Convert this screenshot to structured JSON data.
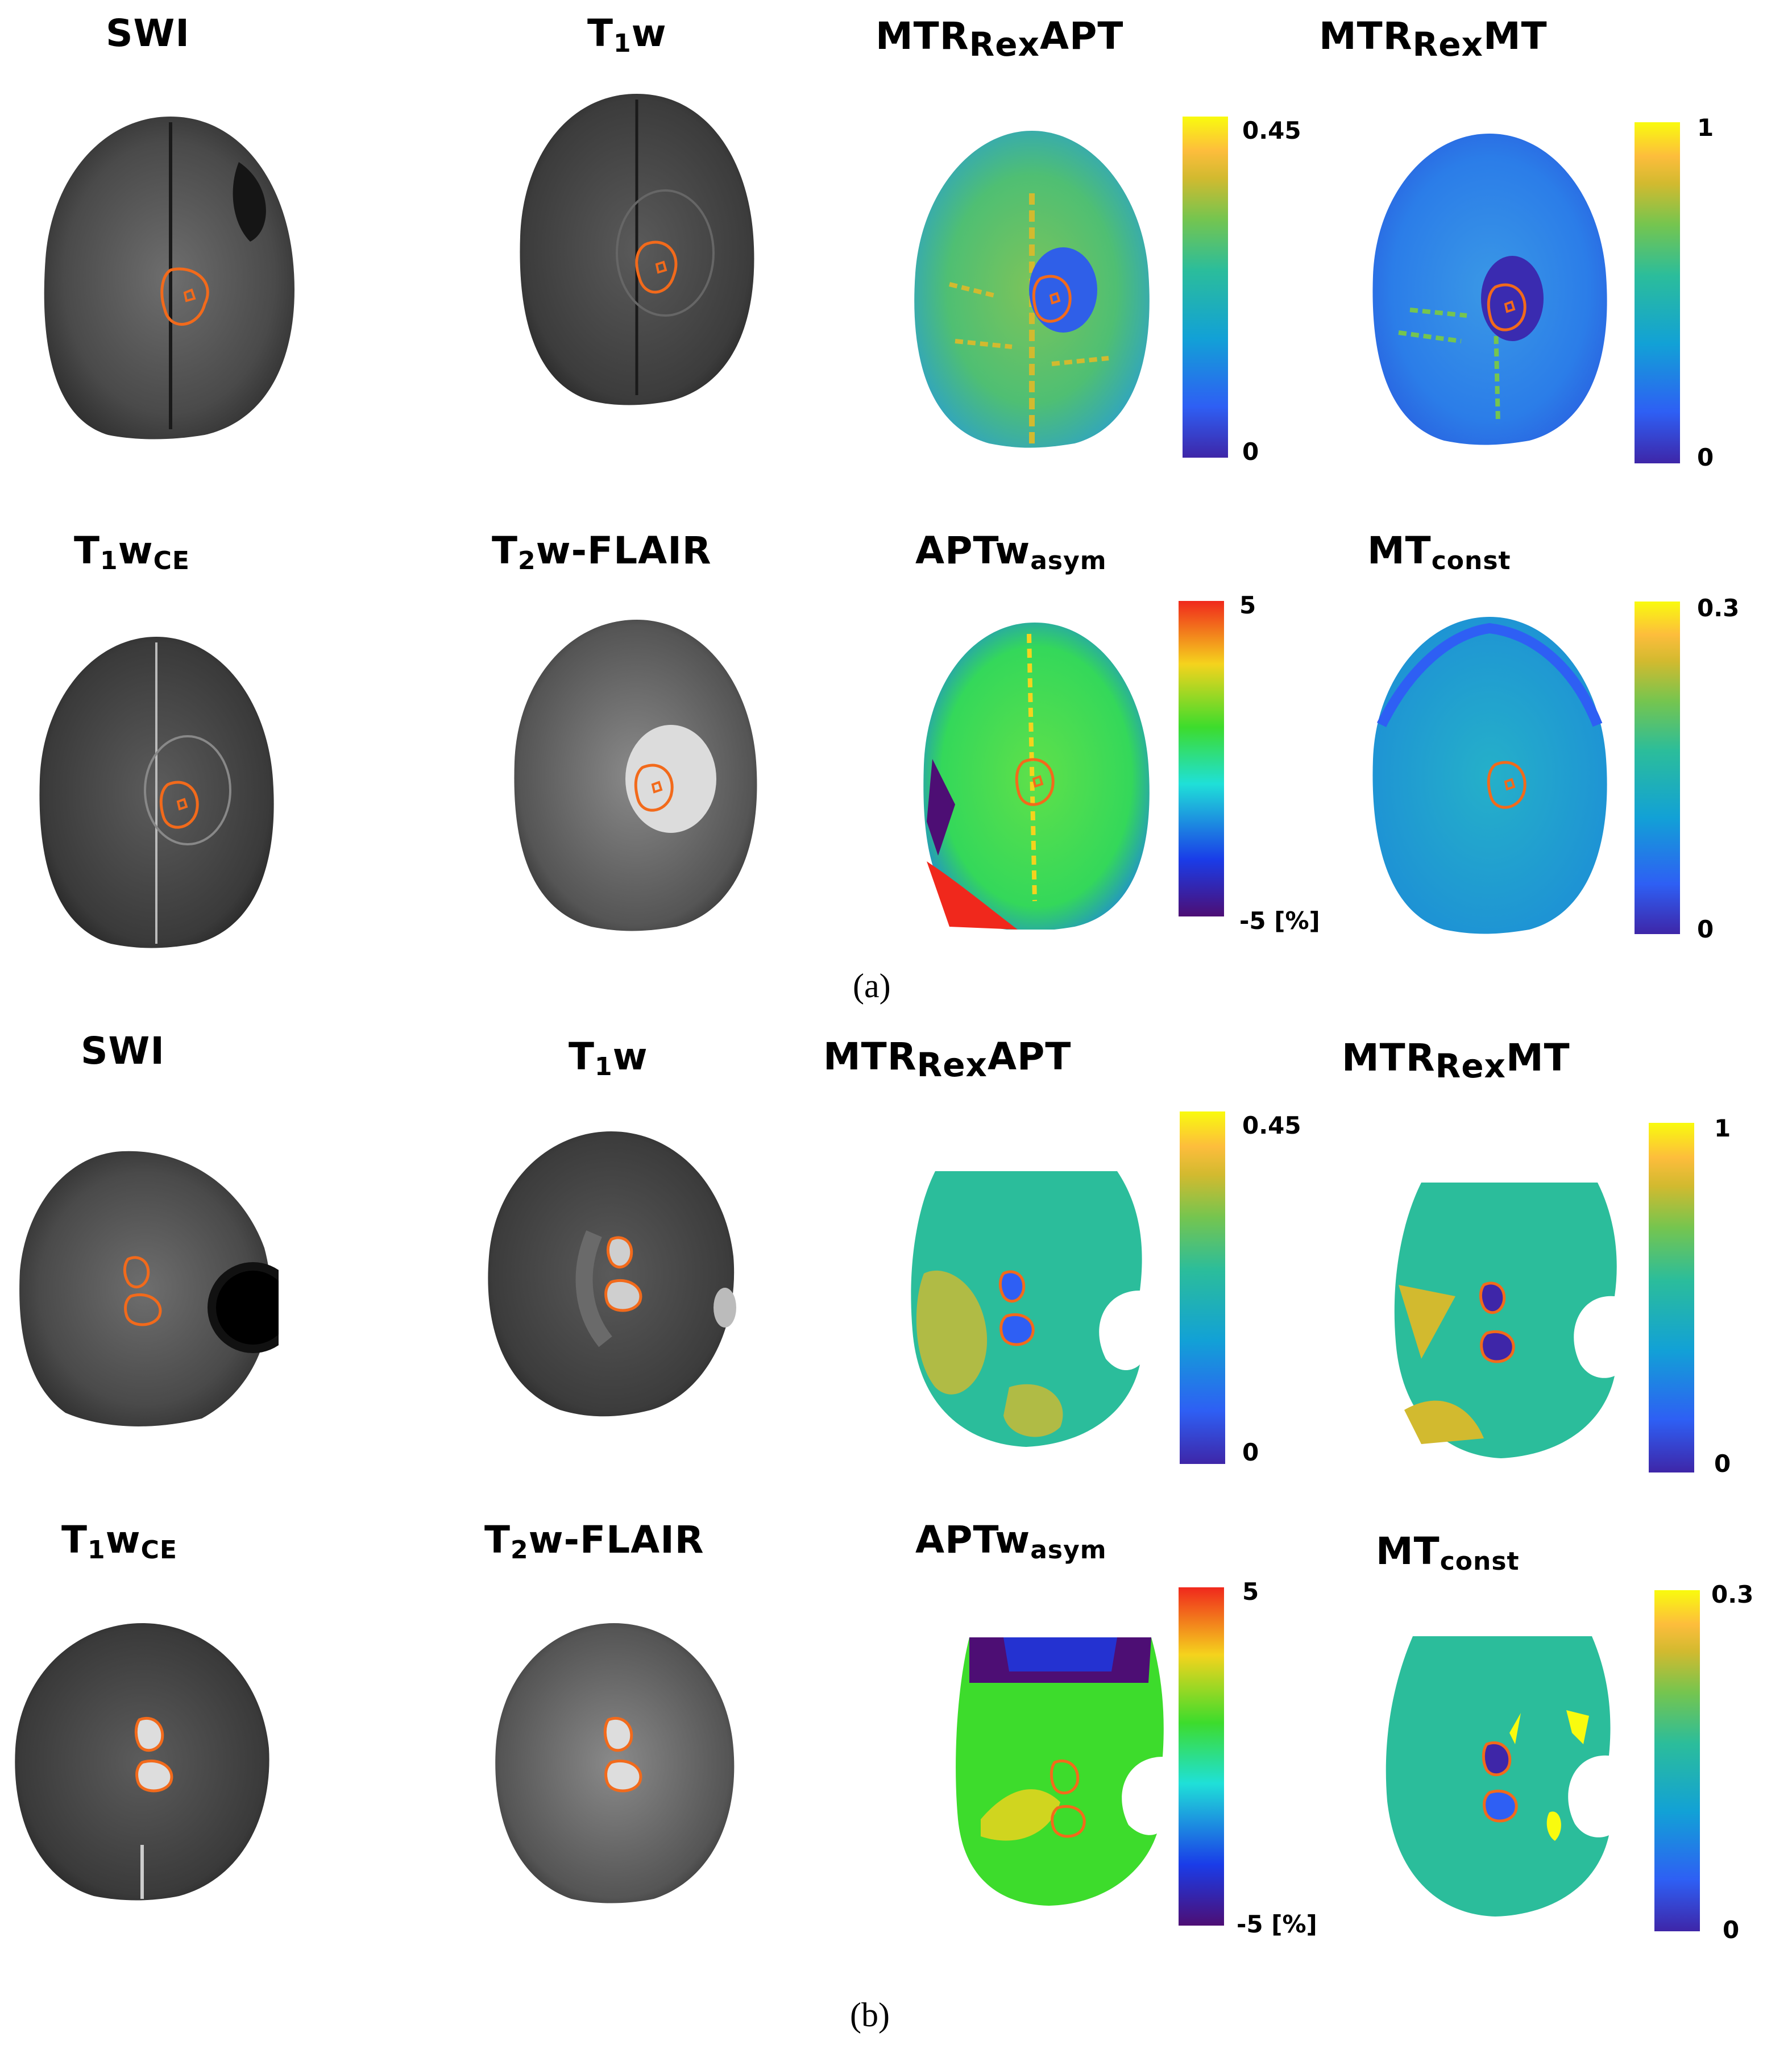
{
  "captions": {
    "a": "(a)",
    "b": "(b)"
  },
  "labels": {
    "swi": "SWI",
    "t1w_main": "T",
    "t1w_sub": "1",
    "t1w_end": "w",
    "t1wce_main": "T",
    "t1wce_sub1": "1",
    "t1wce_w": "w",
    "t1wce_sub2": "CE",
    "t2flair_main": "T",
    "t2flair_sub": "2",
    "t2flair_end": "w-FLAIR",
    "mtrapt_a": "MTR",
    "mtrapt_mid": "Rex",
    "mtrapt_b": "APT",
    "mtrmt_a": "MTR",
    "mtrmt_mid": "Rex",
    "mtrmt_b": "MT",
    "aptw_a": "APTw",
    "aptw_sub": "asym",
    "mtconst_a": "MT",
    "mtconst_sub": "const"
  },
  "colorbars": {
    "mtr_apt": {
      "max": "0.45",
      "min": "0"
    },
    "mtr_mt": {
      "max": "1",
      "min": "0"
    },
    "aptw": {
      "max": "5",
      "min": "-5 [%]"
    },
    "mtconst": {
      "max": "0.3",
      "min": "0"
    }
  },
  "colors": {
    "roi_outline": "#f26a1b",
    "parula": [
      "#3e26a8",
      "#2e5ff4",
      "#12a1d6",
      "#2bbd9b",
      "#75c54f",
      "#d2ba2f",
      "#fdbd3c",
      "#f9fb0e"
    ],
    "jet": [
      "#f0281c",
      "#f5d31d",
      "#3ddc2c",
      "#1fe0d8",
      "#1a3ce8",
      "#4d0e74"
    ]
  }
}
